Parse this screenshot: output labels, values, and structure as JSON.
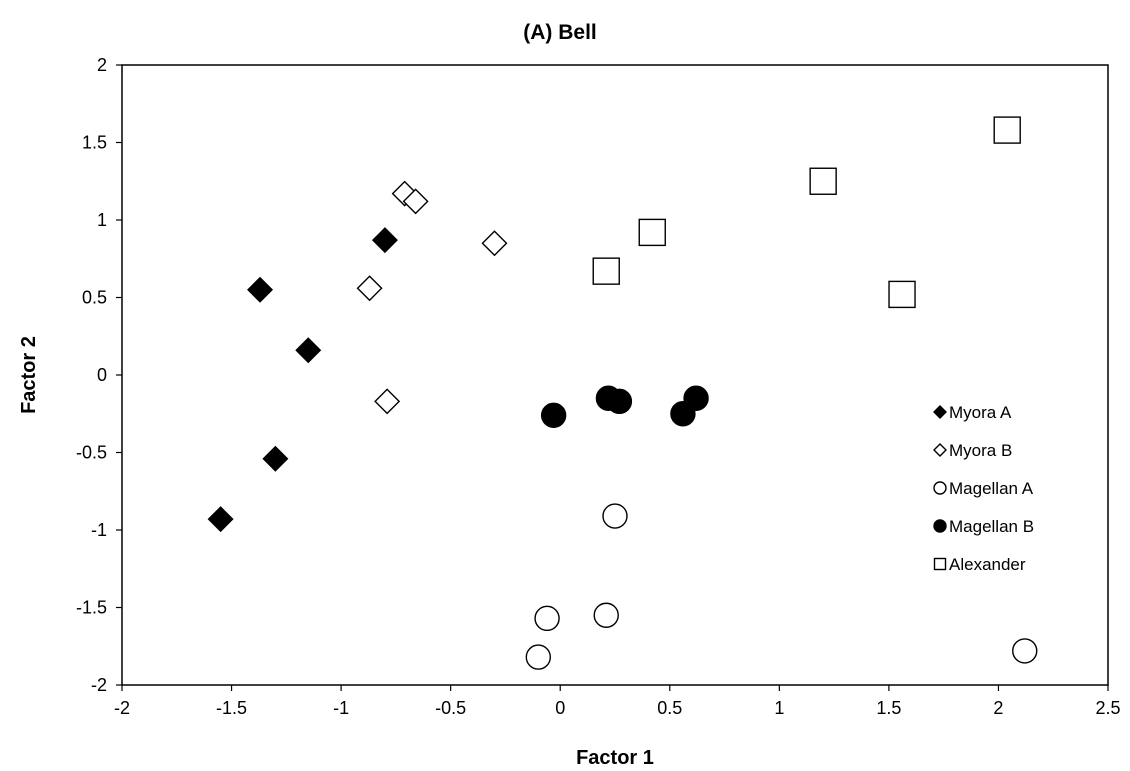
{
  "chart_data": {
    "type": "scatter",
    "title": "(A) Bell",
    "xlabel": "Factor 1",
    "ylabel": "Factor 2",
    "xlim": [
      -2,
      2.5
    ],
    "ylim": [
      -2,
      2
    ],
    "x_ticks": [
      -2,
      -1.5,
      -1,
      -0.5,
      0,
      0.5,
      1,
      1.5,
      2,
      2.5
    ],
    "y_ticks": [
      -2,
      -1.5,
      -1,
      -0.5,
      0,
      0.5,
      1,
      1.5,
      2
    ],
    "x_tick_labels": [
      "-2",
      "-1.5",
      "-1",
      "-0.5",
      "0",
      "0.5",
      "1",
      "1.5",
      "2",
      "2.5"
    ],
    "y_tick_labels": [
      "-2",
      "-1.5",
      "-1",
      "-0.5",
      "0",
      "0.5",
      "1",
      "1.5",
      "2"
    ],
    "grid": false,
    "legend_position": "right",
    "series": [
      {
        "name": "Myora A",
        "marker": "diamond",
        "fill": "#000000",
        "points": [
          [
            -1.37,
            0.55
          ],
          [
            -0.8,
            0.87
          ],
          [
            -1.15,
            0.16
          ],
          [
            -1.3,
            -0.54
          ],
          [
            -1.55,
            -0.93
          ]
        ]
      },
      {
        "name": "Myora B",
        "marker": "diamond",
        "fill": "#ffffff",
        "points": [
          [
            -0.71,
            1.17
          ],
          [
            -0.66,
            1.12
          ],
          [
            -0.3,
            0.85
          ],
          [
            -0.87,
            0.56
          ],
          [
            -0.79,
            -0.17
          ]
        ]
      },
      {
        "name": "Magellan A",
        "marker": "circle",
        "fill": "#ffffff",
        "points": [
          [
            0.25,
            -0.91
          ],
          [
            -0.06,
            -1.57
          ],
          [
            0.21,
            -1.55
          ],
          [
            -0.1,
            -1.82
          ],
          [
            2.12,
            -1.78
          ]
        ]
      },
      {
        "name": "Magellan B",
        "marker": "circle",
        "fill": "#000000",
        "points": [
          [
            -0.03,
            -0.26
          ],
          [
            0.22,
            -0.15
          ],
          [
            0.27,
            -0.17
          ],
          [
            0.56,
            -0.25
          ],
          [
            0.62,
            -0.15
          ]
        ]
      },
      {
        "name": "Alexander",
        "marker": "square",
        "fill": "#ffffff",
        "points": [
          [
            0.21,
            0.67
          ],
          [
            0.42,
            0.92
          ],
          [
            1.2,
            1.25
          ],
          [
            1.56,
            0.52
          ],
          [
            2.04,
            1.58
          ]
        ]
      }
    ]
  }
}
